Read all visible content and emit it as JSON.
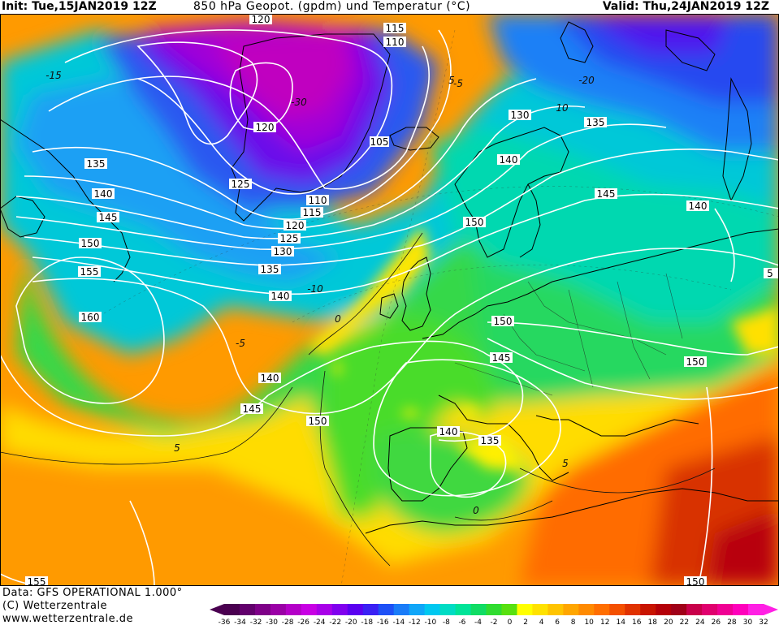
{
  "header": {
    "init": "Init: Tue,15JAN2019 12Z",
    "title": "850 hPa Geopot. (gpdm) und Temperatur (°C)",
    "valid": "Valid: Thu,24JAN2019 12Z"
  },
  "footer": {
    "data_line": "Data: GFS OPERATIONAL 1.000°",
    "copyright": "(C) Wetterzentrale",
    "url": "www.wetterzentrale.de"
  },
  "geopotential_labels": [
    "120",
    "115",
    "110",
    "120",
    "105",
    "130",
    "135",
    "135",
    "140",
    "125",
    "110",
    "115",
    "120",
    "125",
    "130",
    "140",
    "145",
    "140",
    "145",
    "150",
    "150",
    "155",
    "135",
    "140",
    "160",
    "150",
    "145",
    "150",
    "140",
    "145",
    "150",
    "140",
    "135",
    "155",
    "150",
    "5"
  ],
  "temperature_labels": [
    "-15",
    "-30",
    "-5",
    "10",
    "-20",
    "-10",
    "0",
    "-5",
    "5",
    "5",
    "5",
    "0"
  ],
  "colorbar": {
    "ticks": [
      "-36",
      "-34",
      "-32",
      "-30",
      "-28",
      "-26",
      "-24",
      "-22",
      "-20",
      "-18",
      "-16",
      "-14",
      "-12",
      "-10",
      "-8",
      "-6",
      "-4",
      "-2",
      "0",
      "2",
      "4",
      "6",
      "8",
      "10",
      "12",
      "14",
      "16",
      "18",
      "20",
      "22",
      "24",
      "26",
      "28",
      "30",
      "32"
    ],
    "colors": [
      "#4a0050",
      "#62006c",
      "#7e0088",
      "#9a00a6",
      "#b400c8",
      "#c800e4",
      "#a800e8",
      "#8000ee",
      "#5a00f0",
      "#3a20f4",
      "#1e50f6",
      "#1a7cf8",
      "#10a6f8",
      "#00c8f0",
      "#00dcc4",
      "#00e498",
      "#10dc64",
      "#30dc30",
      "#58e010",
      "#ffff00",
      "#ffe200",
      "#ffc400",
      "#ffa600",
      "#ff8a00",
      "#ff6e00",
      "#f45000",
      "#e03200",
      "#c81400",
      "#b40008",
      "#a00018",
      "#c8004a",
      "#e0006e",
      "#f00094",
      "#ff00bc",
      "#ff20e4"
    ]
  }
}
